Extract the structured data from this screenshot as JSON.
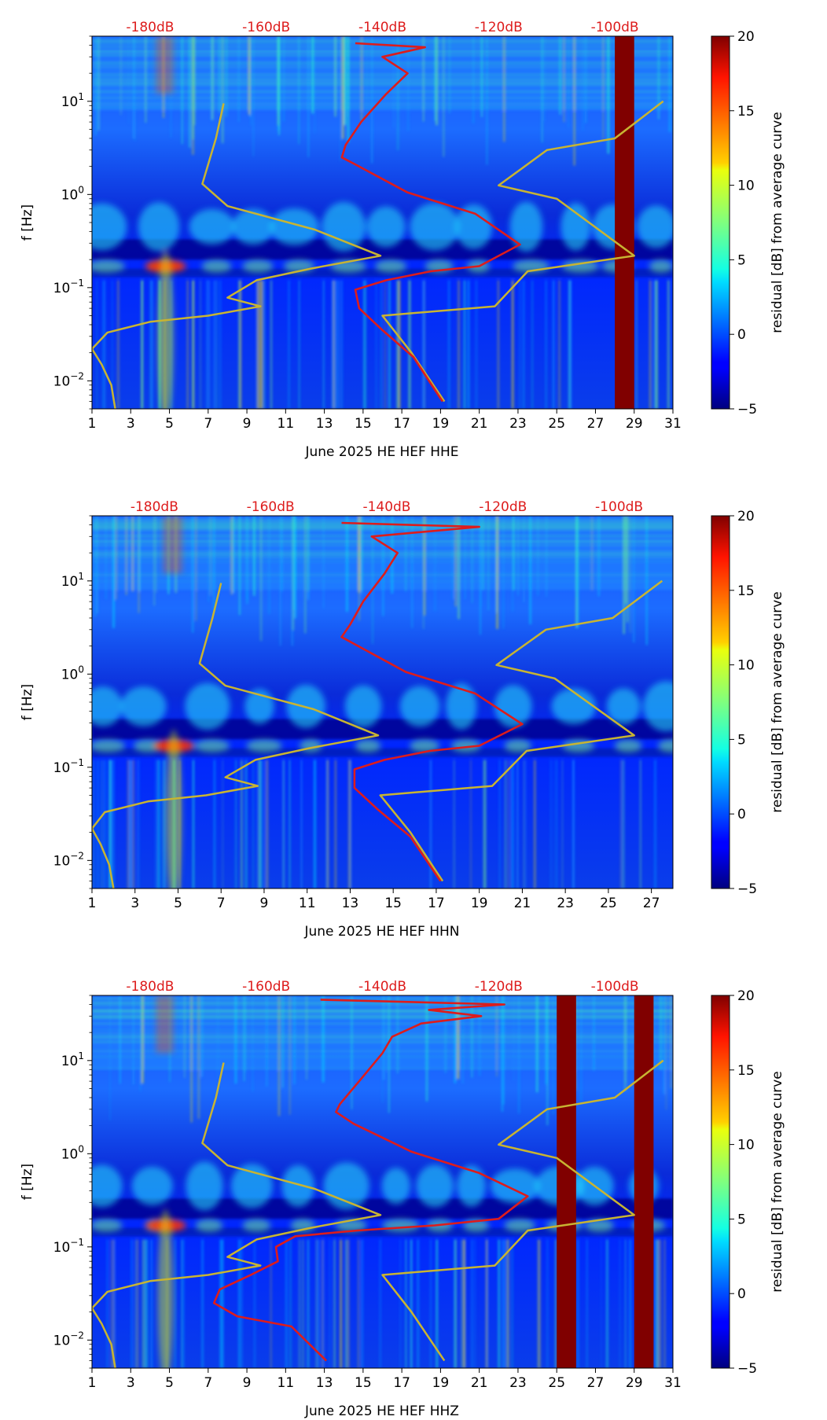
{
  "chart_data": [
    {
      "type": "heatmap",
      "station": "June 2025 HE HEF  HHE",
      "xlabel": "June 2025 HE HEF  HHE",
      "ylabel": "f [Hz]",
      "x_range": [
        1,
        31
      ],
      "x_ticks": [
        "1",
        "3",
        "5",
        "7",
        "9",
        "11",
        "13",
        "15",
        "17",
        "19",
        "21",
        "23",
        "25",
        "27",
        "29",
        "31"
      ],
      "y_range_hz": [
        0.005,
        50
      ],
      "y_ticks": [
        {
          "value": 10,
          "base": "10",
          "exp": "1"
        },
        {
          "value": 1,
          "base": "10",
          "exp": "0"
        },
        {
          "value": 0.1,
          "base": "10",
          "exp": "−1"
        },
        {
          "value": 0.01,
          "base": "10",
          "exp": "−2"
        }
      ],
      "top_axis_labels": [
        "-180dB",
        "-160dB",
        "-140dB",
        "-120dB",
        "-100dB"
      ],
      "top_axis_days": [
        4,
        10,
        16,
        22,
        28
      ],
      "missing_data_days": [
        [
          28,
          29
        ]
      ],
      "average_curve": {
        "name": "average PSD curve",
        "color": "#dd1c1c",
        "points": [
          [
            14.6,
            42
          ],
          [
            18.2,
            38
          ],
          [
            16.0,
            30
          ],
          [
            17.3,
            20
          ],
          [
            16.2,
            12
          ],
          [
            14.9,
            6
          ],
          [
            14.1,
            3.4
          ],
          [
            13.9,
            2.5
          ],
          [
            14.6,
            2.1
          ],
          [
            17.3,
            1.05
          ],
          [
            20.8,
            0.62
          ],
          [
            23.1,
            0.29
          ],
          [
            21.0,
            0.17
          ],
          [
            18.5,
            0.15
          ],
          [
            16.2,
            0.12
          ],
          [
            14.6,
            0.095
          ],
          [
            14.8,
            0.06
          ],
          [
            16.0,
            0.035
          ],
          [
            17.6,
            0.018
          ],
          [
            19.1,
            0.006
          ]
        ]
      },
      "reference_curves": {
        "name": "noise model curves",
        "color": "#c8b432",
        "low": [
          [
            7.8,
            9.5
          ],
          [
            7.4,
            4.0
          ],
          [
            6.7,
            1.3
          ],
          [
            8.0,
            0.75
          ],
          [
            12.5,
            0.42
          ],
          [
            15.9,
            0.22
          ],
          [
            12.3,
            0.16
          ],
          [
            9.5,
            0.12
          ],
          [
            8.0,
            0.078
          ],
          [
            9.7,
            0.063
          ],
          [
            7.0,
            0.05
          ],
          [
            4.0,
            0.043
          ],
          [
            1.8,
            0.033
          ],
          [
            1.0,
            0.022
          ],
          [
            1.5,
            0.015
          ],
          [
            2.0,
            0.009
          ],
          [
            2.2,
            0.005
          ]
        ],
        "high": [
          [
            19.2,
            0.006
          ],
          [
            17.5,
            0.02
          ],
          [
            16.0,
            0.05
          ],
          [
            21.8,
            0.063
          ],
          [
            23.5,
            0.15
          ],
          [
            29.0,
            0.22
          ],
          [
            25.0,
            0.9
          ],
          [
            22.0,
            1.25
          ],
          [
            24.5,
            3.0
          ],
          [
            28.0,
            4.0
          ],
          [
            30.5,
            10
          ]
        ]
      }
    },
    {
      "type": "heatmap",
      "station": "June 2025 HE HEF  HHN",
      "xlabel": "June 2025 HE HEF  HHN",
      "ylabel": "f [Hz]",
      "x_range": [
        1,
        28
      ],
      "x_ticks": [
        "1",
        "3",
        "5",
        "7",
        "9",
        "11",
        "13",
        "15",
        "17",
        "19",
        "21",
        "23",
        "25",
        "27"
      ],
      "y_range_hz": [
        0.005,
        50
      ],
      "y_ticks": [
        {
          "value": 10,
          "base": "10",
          "exp": "1"
        },
        {
          "value": 1,
          "base": "10",
          "exp": "0"
        },
        {
          "value": 0.1,
          "base": "10",
          "exp": "−1"
        },
        {
          "value": 0.01,
          "base": "10",
          "exp": "−2"
        }
      ],
      "top_axis_labels": [
        "-180dB",
        "-160dB",
        "-140dB",
        "-120dB",
        "-100dB"
      ],
      "top_axis_days": [
        3.9,
        9.3,
        14.7,
        20.1,
        25.5
      ],
      "missing_data_days": [],
      "average_curve": {
        "name": "average PSD curve",
        "color": "#dd1c1c",
        "points": [
          [
            12.6,
            42
          ],
          [
            19.0,
            38
          ],
          [
            14.0,
            30
          ],
          [
            15.2,
            20
          ],
          [
            14.6,
            12
          ],
          [
            13.6,
            6
          ],
          [
            13.0,
            3.4
          ],
          [
            12.6,
            2.5
          ],
          [
            13.2,
            2.1
          ],
          [
            15.6,
            1.05
          ],
          [
            18.8,
            0.62
          ],
          [
            21.0,
            0.29
          ],
          [
            19.0,
            0.17
          ],
          [
            16.7,
            0.15
          ],
          [
            14.6,
            0.12
          ],
          [
            13.2,
            0.095
          ],
          [
            13.2,
            0.06
          ],
          [
            14.3,
            0.035
          ],
          [
            15.8,
            0.018
          ],
          [
            17.2,
            0.006
          ]
        ]
      },
      "reference_curves": {
        "name": "noise model curves",
        "color": "#c8b432",
        "low": [
          [
            7.0,
            9.5
          ],
          [
            6.6,
            4.0
          ],
          [
            6.0,
            1.3
          ],
          [
            7.2,
            0.75
          ],
          [
            11.3,
            0.42
          ],
          [
            14.3,
            0.22
          ],
          [
            11.1,
            0.16
          ],
          [
            8.6,
            0.12
          ],
          [
            7.2,
            0.078
          ],
          [
            8.7,
            0.063
          ],
          [
            6.3,
            0.05
          ],
          [
            3.6,
            0.043
          ],
          [
            1.6,
            0.033
          ],
          [
            1.0,
            0.022
          ],
          [
            1.4,
            0.015
          ],
          [
            1.8,
            0.009
          ],
          [
            2.0,
            0.005
          ]
        ],
        "high": [
          [
            17.3,
            0.006
          ],
          [
            15.8,
            0.02
          ],
          [
            14.4,
            0.05
          ],
          [
            19.6,
            0.063
          ],
          [
            21.2,
            0.15
          ],
          [
            26.2,
            0.22
          ],
          [
            22.5,
            0.9
          ],
          [
            19.8,
            1.25
          ],
          [
            22.1,
            3.0
          ],
          [
            25.2,
            4.0
          ],
          [
            27.5,
            10
          ]
        ]
      }
    },
    {
      "type": "heatmap",
      "station": "June 2025 HE HEF  HHZ",
      "xlabel": "June 2025 HE HEF  HHZ",
      "ylabel": "f [Hz]",
      "x_range": [
        1,
        31
      ],
      "x_ticks": [
        "1",
        "3",
        "5",
        "7",
        "9",
        "11",
        "13",
        "15",
        "17",
        "19",
        "21",
        "23",
        "25",
        "27",
        "29",
        "31"
      ],
      "y_range_hz": [
        0.005,
        50
      ],
      "y_ticks": [
        {
          "value": 10,
          "base": "10",
          "exp": "1"
        },
        {
          "value": 1,
          "base": "10",
          "exp": "0"
        },
        {
          "value": 0.1,
          "base": "10",
          "exp": "−1"
        },
        {
          "value": 0.01,
          "base": "10",
          "exp": "−2"
        }
      ],
      "top_axis_labels": [
        "-180dB",
        "-160dB",
        "-140dB",
        "-120dB",
        "-100dB"
      ],
      "top_axis_days": [
        4,
        10,
        16,
        22,
        28
      ],
      "missing_data_days": [
        [
          25,
          26
        ],
        [
          29,
          30
        ]
      ],
      "average_curve": {
        "name": "average PSD curve",
        "color": "#dd1c1c",
        "points": [
          [
            12.8,
            45
          ],
          [
            22.3,
            40
          ],
          [
            18.4,
            35
          ],
          [
            21.1,
            30
          ],
          [
            18.0,
            25
          ],
          [
            16.5,
            18
          ],
          [
            16.0,
            12
          ],
          [
            14.8,
            6
          ],
          [
            13.8,
            3.4
          ],
          [
            13.6,
            2.8
          ],
          [
            14.5,
            2.1
          ],
          [
            17.5,
            1.05
          ],
          [
            21.0,
            0.62
          ],
          [
            23.5,
            0.35
          ],
          [
            22.0,
            0.2
          ],
          [
            18.7,
            0.17
          ],
          [
            14.7,
            0.15
          ],
          [
            11.5,
            0.13
          ],
          [
            10.5,
            0.1
          ],
          [
            10.6,
            0.07
          ],
          [
            9.2,
            0.05
          ],
          [
            7.6,
            0.035
          ],
          [
            7.3,
            0.025
          ],
          [
            8.5,
            0.018
          ],
          [
            11.3,
            0.014
          ],
          [
            13.1,
            0.006
          ]
        ]
      },
      "reference_curves": {
        "name": "noise model curves",
        "color": "#c8b432",
        "low": [
          [
            7.8,
            9.5
          ],
          [
            7.4,
            4.0
          ],
          [
            6.7,
            1.3
          ],
          [
            8.0,
            0.75
          ],
          [
            12.5,
            0.42
          ],
          [
            15.9,
            0.22
          ],
          [
            12.3,
            0.16
          ],
          [
            9.5,
            0.12
          ],
          [
            8.0,
            0.078
          ],
          [
            9.7,
            0.063
          ],
          [
            7.0,
            0.05
          ],
          [
            4.0,
            0.043
          ],
          [
            1.8,
            0.033
          ],
          [
            1.0,
            0.022
          ],
          [
            1.5,
            0.015
          ],
          [
            2.0,
            0.009
          ],
          [
            2.2,
            0.005
          ]
        ],
        "high": [
          [
            19.2,
            0.006
          ],
          [
            17.5,
            0.02
          ],
          [
            16.0,
            0.05
          ],
          [
            21.8,
            0.063
          ],
          [
            23.5,
            0.15
          ],
          [
            29.0,
            0.22
          ],
          [
            25.0,
            0.9
          ],
          [
            22.0,
            1.25
          ],
          [
            24.5,
            3.0
          ],
          [
            28.0,
            4.0
          ],
          [
            30.5,
            10
          ]
        ]
      }
    }
  ],
  "colorbar": {
    "label": "residual [dB] from average curve",
    "range": [
      -5,
      20
    ],
    "ticks": [
      "20",
      "15",
      "10",
      "5",
      "0",
      "−5"
    ],
    "tick_values": [
      20,
      15,
      10,
      5,
      0,
      -5
    ],
    "colormap": "jet"
  },
  "colors": {
    "accent_red": "#dd1c1c",
    "model_yellow": "#c8b432",
    "missing_data": "#800000"
  }
}
